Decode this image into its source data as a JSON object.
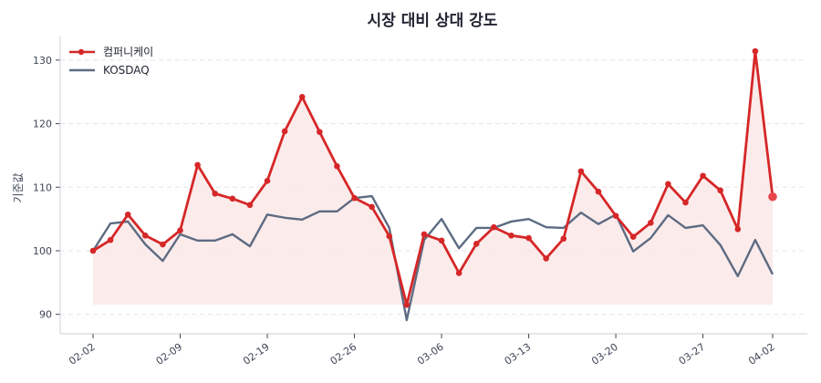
{
  "chart_data": {
    "type": "line",
    "title": "시장 대비 상대 강도",
    "xlabel": "",
    "ylabel": "기준값",
    "ylim": [
      87,
      133
    ],
    "yticks": [
      90,
      100,
      110,
      120,
      130
    ],
    "grid": true,
    "legend_position": "upper left",
    "x": [
      "02-02",
      "",
      "",
      "",
      "",
      "02-09",
      "",
      "",
      "",
      "",
      "02-19",
      "",
      "",
      "",
      "",
      "02-26",
      "",
      "",
      "",
      "",
      "03-06",
      "",
      "",
      "",
      "",
      "03-13",
      "",
      "",
      "",
      "",
      "03-20",
      "",
      "",
      "",
      "",
      "03-27",
      "",
      "",
      "",
      "04-02"
    ],
    "xtick_labels": [
      {
        "index": 0,
        "label": "02-02"
      },
      {
        "index": 5,
        "label": "02-09"
      },
      {
        "index": 10,
        "label": "02-19"
      },
      {
        "index": 15,
        "label": "02-26"
      },
      {
        "index": 20,
        "label": "03-06"
      },
      {
        "index": 25,
        "label": "03-13"
      },
      {
        "index": 30,
        "label": "03-20"
      },
      {
        "index": 35,
        "label": "03-27"
      },
      {
        "index": 39,
        "label": "04-02"
      }
    ],
    "series": [
      {
        "name": "컴퍼니케이",
        "color": "#d62728",
        "markers": true,
        "fill_to_min": true,
        "fill_color": "#fbe9e9",
        "values": [
          100.0,
          101.7,
          105.7,
          102.4,
          101.0,
          103.2,
          113.5,
          109.0,
          108.2,
          107.2,
          111.0,
          118.8,
          124.2,
          118.7,
          113.3,
          108.3,
          106.9,
          102.3,
          91.5,
          102.6,
          101.6,
          96.5,
          101.1,
          103.7,
          102.4,
          102.0,
          98.8,
          101.9,
          112.5,
          109.3,
          105.5,
          102.2,
          104.4,
          110.5,
          107.6,
          111.8,
          109.5,
          103.4,
          131.4,
          108.5
        ]
      },
      {
        "name": "KOSDAQ",
        "color": "#5d6b82",
        "markers": false,
        "values": [
          100.0,
          104.3,
          104.6,
          101.0,
          98.4,
          102.6,
          101.6,
          101.6,
          102.6,
          100.7,
          105.7,
          105.2,
          104.9,
          106.2,
          106.2,
          108.3,
          108.6,
          103.6,
          89.1,
          101.7,
          105.0,
          100.4,
          103.6,
          103.6,
          104.6,
          105.0,
          103.7,
          103.6,
          106.0,
          104.2,
          105.7,
          99.9,
          102.0,
          105.6,
          103.6,
          104.0,
          100.9,
          96.0,
          101.7,
          96.3
        ]
      }
    ]
  },
  "colors": {
    "grid": "#e3e5e9",
    "spine": "#d5d8de",
    "tick": "#3d4556"
  }
}
